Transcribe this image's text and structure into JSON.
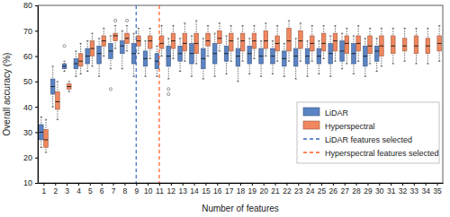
{
  "chart_data": {
    "type": "box",
    "x_label": "Number of features",
    "y_label": "Overall accuracy (%)",
    "x": [
      1,
      2,
      3,
      4,
      5,
      6,
      7,
      8,
      9,
      10,
      11,
      12,
      13,
      14,
      15,
      16,
      17,
      18,
      19,
      20,
      21,
      22,
      23,
      24,
      25,
      26,
      27,
      28,
      29,
      30,
      31,
      32,
      33,
      34,
      35
    ],
    "xlim": [
      0.5,
      35.5
    ],
    "xticks": [
      1,
      2,
      3,
      4,
      5,
      6,
      7,
      8,
      9,
      10,
      11,
      12,
      13,
      14,
      15,
      16,
      17,
      18,
      19,
      20,
      21,
      22,
      23,
      24,
      25,
      26,
      27,
      28,
      29,
      30,
      31,
      32,
      33,
      34,
      35
    ],
    "ylim": [
      10,
      80
    ],
    "yticks": [
      10,
      20,
      30,
      40,
      50,
      60,
      70,
      80
    ],
    "grid": false,
    "legend": "lower right",
    "series": [
      {
        "name": "LiDAR",
        "color": "#5b84c4",
        "min": [
          24,
          40,
          54,
          52,
          54,
          52,
          55,
          55,
          52,
          52,
          52,
          51,
          54,
          52,
          51,
          52,
          53,
          50,
          53,
          52,
          53,
          52,
          51,
          52,
          53,
          52,
          55,
          53,
          52,
          54,
          null,
          null,
          null,
          null,
          null
        ],
        "q1": [
          27,
          45,
          55,
          55,
          57,
          57,
          59,
          61,
          57,
          56,
          55,
          56,
          58,
          57,
          55,
          57,
          58,
          56,
          57,
          57,
          57,
          56,
          56,
          57,
          57,
          57,
          58,
          57,
          56,
          58,
          null,
          null,
          null,
          null,
          null
        ],
        "median": [
          30,
          48,
          56,
          57,
          60,
          61,
          62,
          64,
          61,
          59,
          58,
          60,
          61,
          61,
          59,
          61,
          61,
          60,
          61,
          60,
          60,
          59,
          60,
          60,
          60,
          61,
          62,
          61,
          60,
          62,
          null,
          null,
          null,
          null,
          null
        ],
        "q3": [
          33,
          51,
          57,
          59,
          63,
          64,
          65,
          66,
          65,
          62,
          61,
          64,
          64,
          65,
          63,
          65,
          64,
          63,
          64,
          63,
          63,
          62,
          63,
          63,
          63,
          65,
          66,
          65,
          64,
          64,
          null,
          null,
          null,
          null,
          null
        ],
        "max": [
          36,
          56,
          58,
          62,
          66,
          67,
          68,
          70,
          69,
          66,
          64,
          67,
          67,
          68,
          67,
          69,
          68,
          67,
          67,
          66,
          66,
          65,
          67,
          66,
          66,
          68,
          69,
          68,
          67,
          67,
          null,
          null,
          null,
          null,
          null
        ],
        "outliers": [
          {
            "x": 7,
            "value": 47
          },
          {
            "x": 12,
            "value": 45
          },
          {
            "x": 12,
            "value": 47
          },
          {
            "x": 3,
            "value": 64
          }
        ]
      },
      {
        "name": "Hyperspectral",
        "color": "#f0875f",
        "min": [
          22,
          35,
          46,
          53,
          56,
          60,
          63,
          62,
          61,
          59,
          60,
          59,
          58,
          57,
          60,
          62,
          58,
          58,
          59,
          60,
          58,
          58,
          58,
          58,
          59,
          58,
          57,
          58,
          57,
          56,
          57,
          58,
          57,
          57,
          58
        ],
        "q1": [
          24,
          39,
          47,
          56,
          60,
          64,
          66,
          65,
          64,
          63,
          63,
          63,
          62,
          61,
          64,
          65,
          62,
          62,
          63,
          63,
          62,
          62,
          63,
          62,
          62,
          62,
          61,
          62,
          61,
          60,
          61,
          62,
          61,
          61,
          62
        ],
        "median": [
          27,
          42,
          48,
          58,
          63,
          66,
          68,
          67,
          66,
          66,
          65,
          66,
          65,
          65,
          66,
          67,
          66,
          66,
          66,
          66,
          65,
          66,
          66,
          65,
          65,
          66,
          65,
          65,
          64,
          64,
          64,
          64,
          64,
          64,
          65
        ],
        "q3": [
          31,
          46,
          49,
          61,
          66,
          68,
          69,
          69,
          68,
          68,
          68,
          69,
          69,
          69,
          69,
          70,
          69,
          69,
          69,
          70,
          68,
          71,
          70,
          68,
          69,
          69,
          68,
          68,
          68,
          68,
          68,
          67,
          68,
          67,
          68
        ],
        "max": [
          35,
          50,
          50,
          65,
          69,
          71,
          72,
          72,
          71,
          71,
          72,
          72,
          73,
          74,
          72,
          73,
          72,
          72,
          72,
          73,
          72,
          74,
          73,
          72,
          72,
          72,
          71,
          72,
          71,
          71,
          71,
          71,
          71,
          71,
          72
        ],
        "outliers": [
          {
            "x": 7,
            "value": 74
          },
          {
            "x": 8,
            "value": 74
          }
        ]
      }
    ],
    "vlines": [
      {
        "name": "LiDAR features selected",
        "x": 9,
        "color": "#3a6bc0",
        "line_style": "dashed"
      },
      {
        "name": "Hyperspectral features selected",
        "x": 11,
        "color": "#ff5a1f",
        "line_style": "dashed"
      }
    ]
  }
}
